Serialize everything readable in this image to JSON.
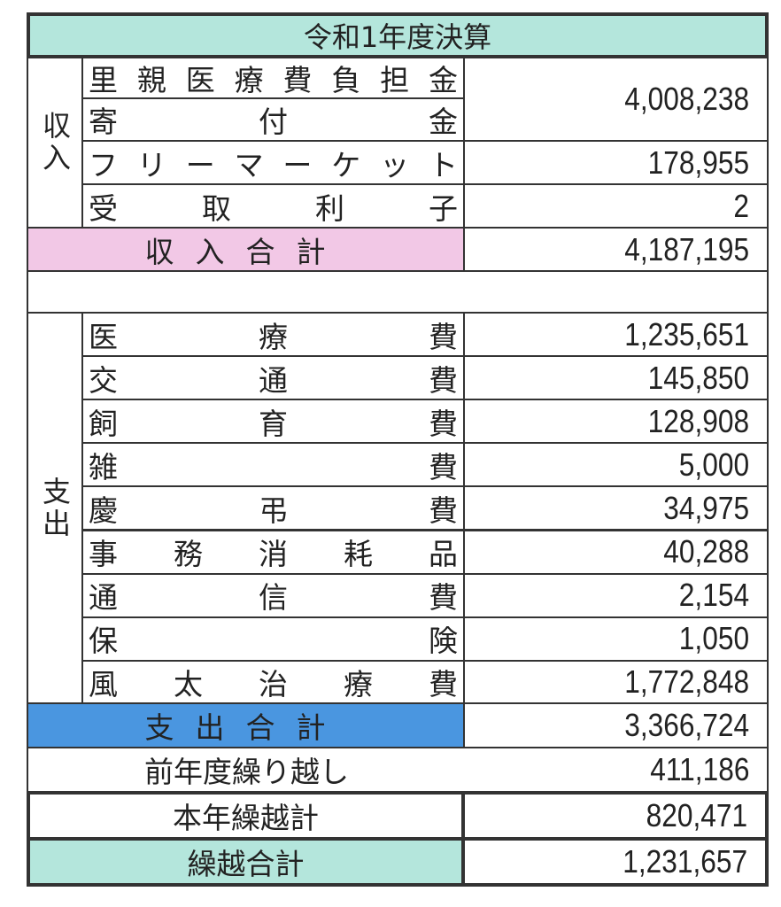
{
  "title": "令和1年度決算",
  "income": {
    "category": "収入",
    "items": [
      {
        "label": "里親医療費負担金"
      },
      {
        "label": "寄付金"
      },
      {
        "label": "フリーマーケット",
        "value": "178,955"
      },
      {
        "label": "受取利子",
        "value": "2"
      }
    ],
    "combined_value": "4,008,238",
    "total_label": "収入合計",
    "total_value": "4,187,195"
  },
  "expense": {
    "category": "支出",
    "items": [
      {
        "label": "医療費",
        "value": "1,235,651"
      },
      {
        "label": "交通費",
        "value": "145,850"
      },
      {
        "label": "飼育費",
        "value": "128,908"
      },
      {
        "label": "雑費",
        "value": "5,000"
      },
      {
        "label": "慶弔費",
        "value": "34,975"
      },
      {
        "label": "事務消耗品",
        "value": "40,288"
      },
      {
        "label": "通信費",
        "value": "2,154"
      },
      {
        "label": "保険",
        "value": "1,050"
      },
      {
        "label": "風太治療費",
        "value": "1,772,848"
      }
    ],
    "total_label": "支出合計",
    "total_value": "3,366,724"
  },
  "carryover_prev": {
    "label": "前年度繰り越し",
    "value": "411,186"
  },
  "carryover_year": {
    "label": "本年繰越計",
    "value": "820,471"
  },
  "carryover_total": {
    "label": "繰越合計",
    "value": "1,231,657"
  },
  "colors": {
    "title": "#b4e6dc",
    "income_total": "#f2c8e6",
    "expense_total": "#4a96e0",
    "carryover_total": "#b4e6dc"
  }
}
